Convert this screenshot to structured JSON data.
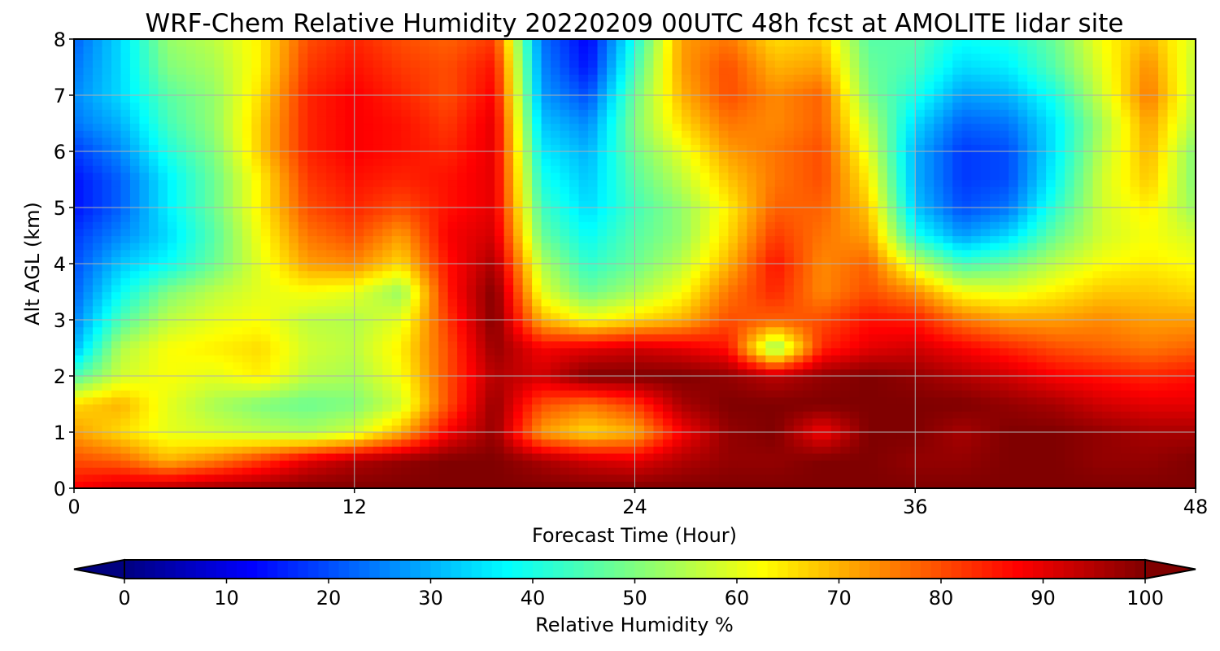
{
  "chart_data": {
    "type": "heatmap",
    "title": "WRF-Chem Relative Humidity 20220209 00UTC 48h fcst at AMOLITE lidar site",
    "xlabel": "Forecast Time (Hour)",
    "ylabel": "Alt AGL (km)",
    "xlim": [
      0,
      48
    ],
    "ylim": [
      0,
      8
    ],
    "x_ticks": [
      0,
      12,
      24,
      36,
      48
    ],
    "x_tick_labels": [
      "0",
      "12",
      "24",
      "36",
      "48"
    ],
    "y_ticks": [
      0,
      1,
      2,
      3,
      4,
      5,
      6,
      7,
      8
    ],
    "y_tick_labels": [
      "0",
      "1",
      "2",
      "3",
      "4",
      "5",
      "6",
      "7",
      "8"
    ],
    "grid": true,
    "x": [
      0,
      2,
      4,
      6,
      8,
      10,
      12,
      14,
      16,
      18,
      20,
      22,
      24,
      26,
      28,
      30,
      32,
      34,
      36,
      38,
      40,
      42,
      44,
      46,
      48
    ],
    "y": [
      0,
      0.5,
      1,
      1.5,
      2,
      2.5,
      3,
      3.5,
      4,
      4.5,
      5,
      5.5,
      6,
      6.5,
      7,
      7.5,
      8
    ],
    "z": [
      [
        88,
        92,
        95,
        97,
        98,
        100,
        100,
        100,
        100,
        100,
        100,
        100,
        100,
        100,
        100,
        100,
        100,
        100,
        100,
        100,
        100,
        100,
        100,
        100,
        100
      ],
      [
        80,
        78,
        70,
        75,
        82,
        90,
        95,
        98,
        100,
        100,
        96,
        92,
        90,
        95,
        98,
        98,
        100,
        100,
        98,
        98,
        100,
        100,
        98,
        98,
        100
      ],
      [
        72,
        66,
        60,
        58,
        56,
        54,
        58,
        70,
        88,
        98,
        72,
        66,
        70,
        88,
        98,
        100,
        88,
        100,
        100,
        96,
        100,
        100,
        98,
        96,
        96
      ],
      [
        66,
        70,
        60,
        54,
        50,
        48,
        50,
        58,
        80,
        98,
        80,
        76,
        82,
        96,
        100,
        100,
        100,
        100,
        100,
        100,
        98,
        96,
        92,
        90,
        90
      ],
      [
        45,
        58,
        62,
        60,
        64,
        56,
        54,
        62,
        80,
        95,
        92,
        100,
        100,
        100,
        98,
        94,
        98,
        100,
        98,
        95,
        92,
        88,
        86,
        84,
        86
      ],
      [
        30,
        55,
        62,
        64,
        66,
        58,
        56,
        64,
        80,
        98,
        88,
        90,
        92,
        90,
        86,
        50,
        84,
        90,
        92,
        88,
        84,
        80,
        78,
        76,
        78
      ],
      [
        25,
        45,
        56,
        60,
        62,
        56,
        55,
        60,
        82,
        100,
        70,
        62,
        66,
        70,
        80,
        78,
        80,
        86,
        85,
        76,
        72,
        72,
        74,
        72,
        72
      ],
      [
        22,
        38,
        50,
        56,
        60,
        62,
        60,
        52,
        85,
        100,
        60,
        48,
        54,
        62,
        76,
        84,
        74,
        80,
        74,
        62,
        60,
        64,
        68,
        68,
        66
      ],
      [
        20,
        32,
        38,
        48,
        60,
        72,
        74,
        66,
        86,
        96,
        55,
        42,
        48,
        56,
        70,
        86,
        74,
        78,
        58,
        44,
        48,
        56,
        62,
        64,
        62
      ],
      [
        18,
        26,
        34,
        46,
        62,
        76,
        80,
        72,
        88,
        92,
        48,
        38,
        46,
        52,
        66,
        82,
        76,
        72,
        40,
        28,
        34,
        48,
        58,
        62,
        58
      ],
      [
        14,
        22,
        36,
        48,
        64,
        80,
        84,
        80,
        86,
        90,
        44,
        34,
        44,
        52,
        64,
        78,
        78,
        68,
        32,
        20,
        24,
        42,
        58,
        64,
        52
      ],
      [
        14,
        22,
        36,
        48,
        64,
        82,
        86,
        84,
        86,
        90,
        40,
        32,
        46,
        56,
        68,
        76,
        80,
        64,
        30,
        18,
        20,
        38,
        58,
        68,
        50
      ],
      [
        18,
        26,
        40,
        50,
        68,
        84,
        88,
        86,
        84,
        90,
        36,
        30,
        48,
        60,
        72,
        76,
        80,
        60,
        30,
        18,
        20,
        36,
        56,
        70,
        50
      ],
      [
        24,
        30,
        44,
        52,
        68,
        84,
        88,
        86,
        82,
        90,
        32,
        26,
        50,
        66,
        76,
        74,
        78,
        56,
        34,
        22,
        24,
        36,
        54,
        72,
        54
      ],
      [
        26,
        34,
        46,
        52,
        66,
        84,
        88,
        84,
        80,
        88,
        28,
        20,
        48,
        70,
        80,
        74,
        78,
        50,
        40,
        28,
        30,
        40,
        58,
        76,
        56
      ],
      [
        24,
        34,
        50,
        54,
        64,
        82,
        86,
        82,
        80,
        86,
        26,
        14,
        44,
        72,
        80,
        70,
        72,
        48,
        44,
        34,
        36,
        46,
        60,
        74,
        56
      ],
      [
        22,
        34,
        52,
        56,
        64,
        80,
        84,
        80,
        78,
        82,
        24,
        12,
        40,
        72,
        76,
        66,
        68,
        46,
        46,
        38,
        40,
        48,
        62,
        70,
        58
      ]
    ],
    "colorbar": {
      "label": "Relative Humidity %",
      "vmin": 0,
      "vmax": 100,
      "ticks": [
        0,
        10,
        20,
        30,
        40,
        50,
        60,
        70,
        80,
        90,
        100
      ],
      "tick_labels": [
        "0",
        "10",
        "20",
        "30",
        "40",
        "50",
        "60",
        "70",
        "80",
        "90",
        "100"
      ],
      "extend": "both",
      "colormap": "jet",
      "orientation": "horizontal",
      "placement": "bottom"
    }
  }
}
